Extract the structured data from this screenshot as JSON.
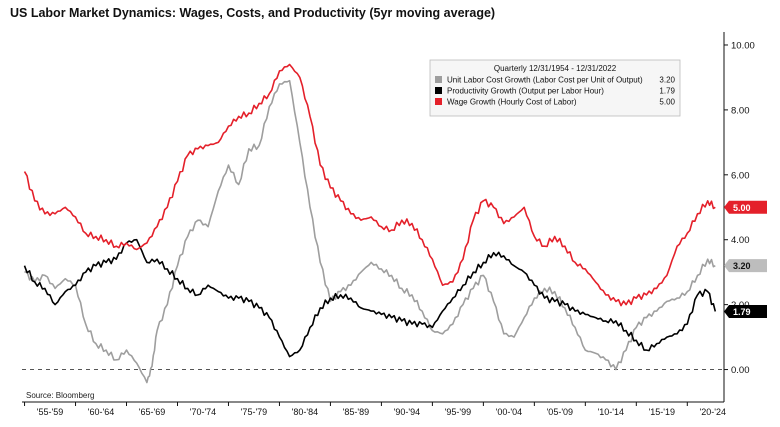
{
  "chart_data": {
    "type": "line",
    "title": "US Labor Market Dynamics: Wages, Costs, and Productivity (5yr moving average)",
    "source": "Source: Bloomberg",
    "xlabel": "",
    "ylabel": "",
    "xlim": [
      1954.75,
      2023.6
    ],
    "ylim": [
      -1.0,
      10.4
    ],
    "yticks": [
      0.0,
      2.0,
      4.0,
      6.0,
      8.0,
      10.0
    ],
    "ytick_labels": [
      "0.00",
      "2.00",
      "4.00",
      "6.00",
      "8.00",
      "10.00"
    ],
    "xtick_labels": [
      "'55-'59",
      "'60-'64",
      "'65-'69",
      "'70-'74",
      "'75-'79",
      "'80-'84",
      "'85-'89",
      "'90-'94",
      "'95-'99",
      "'00-'04",
      "'05-'09",
      "'10-'14",
      "'15-'19",
      "'20-'24"
    ],
    "reference_line": 0.0,
    "legend": {
      "header": "Quarterly 12/31/1954 - 12/31/2022",
      "position": "top-right"
    },
    "series": [
      {
        "name": "Unit Labor Cost Growth (Labor Cost per Unit of Output)",
        "last_label": "3.20",
        "color": "#9e9e9e",
        "x": [
          1955.0,
          1956.0,
          1957.0,
          1958.0,
          1959.0,
          1960.0,
          1961.0,
          1962.0,
          1963.0,
          1964.0,
          1965.0,
          1966.0,
          1967.0,
          1967.5,
          1968.0,
          1969.0,
          1970.0,
          1971.0,
          1972.0,
          1973.0,
          1974.0,
          1975.0,
          1976.0,
          1977.0,
          1978.0,
          1979.0,
          1980.0,
          1981.0,
          1982.0,
          1983.0,
          1984.0,
          1985.0,
          1986.0,
          1987.0,
          1988.0,
          1989.0,
          1990.0,
          1991.0,
          1992.0,
          1993.0,
          1994.0,
          1995.0,
          1996.0,
          1997.0,
          1998.0,
          1999.0,
          2000.0,
          2001.0,
          2002.0,
          2003.0,
          2004.0,
          2005.0,
          2006.0,
          2007.0,
          2008.0,
          2009.0,
          2010.0,
          2011.0,
          2012.0,
          2013.0,
          2014.0,
          2015.0,
          2016.0,
          2017.0,
          2018.0,
          2019.0,
          2020.0,
          2021.0,
          2022.0,
          2022.75
        ],
        "values": [
          3.0,
          2.7,
          2.9,
          2.5,
          2.8,
          2.6,
          1.4,
          0.8,
          0.6,
          0.3,
          0.6,
          0.2,
          -0.4,
          0.1,
          1.2,
          2.0,
          3.2,
          4.1,
          4.6,
          4.4,
          5.5,
          6.3,
          5.7,
          6.8,
          6.9,
          8.1,
          8.8,
          8.9,
          7.0,
          5.0,
          3.3,
          2.1,
          2.4,
          2.6,
          3.0,
          3.3,
          3.1,
          2.9,
          2.5,
          2.3,
          1.8,
          1.2,
          1.1,
          1.4,
          2.0,
          2.5,
          2.9,
          2.1,
          1.1,
          1.0,
          1.6,
          2.2,
          2.5,
          2.4,
          1.9,
          1.3,
          0.6,
          0.5,
          0.3,
          0.0,
          0.6,
          1.3,
          1.6,
          1.8,
          2.1,
          2.2,
          2.4,
          2.9,
          3.4,
          3.2
        ]
      },
      {
        "name": "Productivity Growth (Output per Labor Hour)",
        "last_label": "1.79",
        "color": "#000000",
        "x": [
          1955.0,
          1956.0,
          1957.0,
          1958.0,
          1959.0,
          1960.0,
          1961.0,
          1962.0,
          1963.0,
          1964.0,
          1965.0,
          1966.0,
          1967.0,
          1968.0,
          1969.0,
          1970.0,
          1971.0,
          1972.0,
          1973.0,
          1974.0,
          1975.0,
          1976.0,
          1977.0,
          1978.0,
          1979.0,
          1980.0,
          1981.0,
          1982.0,
          1983.0,
          1984.0,
          1985.0,
          1986.0,
          1987.0,
          1988.0,
          1989.0,
          1990.0,
          1991.0,
          1992.0,
          1993.0,
          1994.0,
          1995.0,
          1996.0,
          1997.0,
          1998.0,
          1999.0,
          2000.0,
          2001.0,
          2002.0,
          2003.0,
          2004.0,
          2005.0,
          2006.0,
          2007.0,
          2008.0,
          2009.0,
          2010.0,
          2011.0,
          2012.0,
          2013.0,
          2014.0,
          2015.0,
          2016.0,
          2017.0,
          2018.0,
          2019.0,
          2020.0,
          2021.0,
          2022.0,
          2022.75
        ],
        "values": [
          3.2,
          2.7,
          2.5,
          2.0,
          2.4,
          2.6,
          3.0,
          3.2,
          3.3,
          3.4,
          3.9,
          4.0,
          3.3,
          3.4,
          3.1,
          2.8,
          2.5,
          2.3,
          2.6,
          2.4,
          2.2,
          2.2,
          2.1,
          1.9,
          1.6,
          1.0,
          0.4,
          0.6,
          1.3,
          1.9,
          2.2,
          2.3,
          2.2,
          1.9,
          1.8,
          1.7,
          1.6,
          1.5,
          1.4,
          1.4,
          1.3,
          1.8,
          2.2,
          2.6,
          3.0,
          3.3,
          3.6,
          3.5,
          3.2,
          3.0,
          2.6,
          2.2,
          2.1,
          2.0,
          1.8,
          1.7,
          1.6,
          1.5,
          1.5,
          1.2,
          0.9,
          0.6,
          0.8,
          1.0,
          1.1,
          1.4,
          2.3,
          2.4,
          1.79
        ]
      },
      {
        "name": "Wage Growth (Hourly Cost of Labor)",
        "last_label": "5.00",
        "color": "#e4202a",
        "x": [
          1955.0,
          1956.0,
          1957.0,
          1958.0,
          1959.0,
          1960.0,
          1961.0,
          1962.0,
          1963.0,
          1964.0,
          1965.0,
          1966.0,
          1967.0,
          1968.0,
          1969.0,
          1970.0,
          1971.0,
          1972.0,
          1973.0,
          1974.0,
          1975.0,
          1976.0,
          1977.0,
          1978.0,
          1979.0,
          1980.0,
          1981.0,
          1982.0,
          1983.0,
          1984.0,
          1985.0,
          1986.0,
          1987.0,
          1988.0,
          1989.0,
          1990.0,
          1991.0,
          1992.0,
          1993.0,
          1994.0,
          1995.0,
          1996.0,
          1997.0,
          1998.0,
          1999.0,
          2000.0,
          2001.0,
          2002.0,
          2003.0,
          2004.0,
          2005.0,
          2006.0,
          2007.0,
          2008.0,
          2009.0,
          2010.0,
          2011.0,
          2012.0,
          2013.0,
          2014.0,
          2015.0,
          2016.0,
          2017.0,
          2018.0,
          2019.0,
          2020.0,
          2021.0,
          2022.0,
          2022.75
        ],
        "values": [
          6.1,
          5.2,
          4.8,
          4.8,
          5.0,
          4.7,
          4.2,
          4.1,
          4.0,
          3.8,
          3.9,
          3.7,
          3.9,
          4.4,
          5.0,
          5.8,
          6.6,
          6.8,
          6.9,
          7.0,
          7.5,
          7.8,
          7.9,
          8.2,
          8.5,
          9.2,
          9.4,
          9.0,
          7.8,
          6.3,
          5.6,
          5.2,
          4.8,
          4.6,
          4.7,
          4.4,
          4.3,
          4.6,
          4.5,
          4.0,
          3.4,
          2.6,
          2.7,
          3.4,
          4.6,
          5.2,
          5.0,
          4.5,
          4.7,
          5.0,
          4.1,
          3.8,
          4.1,
          3.8,
          3.3,
          3.1,
          2.7,
          2.3,
          2.1,
          2.0,
          2.2,
          2.3,
          2.5,
          2.9,
          3.8,
          4.2,
          4.8,
          5.2,
          5.0
        ]
      }
    ]
  }
}
